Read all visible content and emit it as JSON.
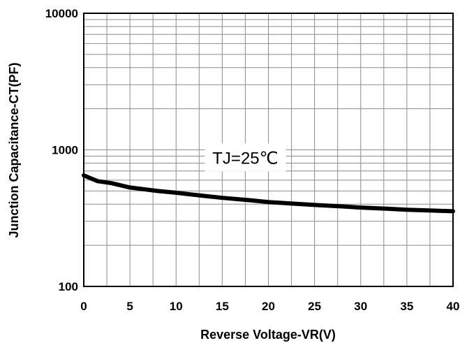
{
  "chart_data": {
    "type": "line",
    "xlabel": "Reverse Voltage-VR(V)",
    "ylabel": "Junction Capacitance-CT(PF)",
    "xlim": [
      0,
      40
    ],
    "ylim": [
      100,
      10000
    ],
    "yscale": "log",
    "grid": true,
    "x_ticks": [
      "0",
      "5",
      "10",
      "15",
      "20",
      "25",
      "30",
      "35",
      "40"
    ],
    "y_ticks": [
      "100",
      "1000",
      "10000"
    ],
    "annotations": [
      "TJ=25℃"
    ],
    "series": [
      {
        "x": [
          0,
          1.5,
          3,
          5,
          8,
          10,
          13,
          15,
          18,
          20,
          23,
          25,
          28,
          30,
          33,
          35,
          38,
          40
        ],
        "values": [
          650,
          590,
          570,
          530,
          500,
          485,
          460,
          445,
          428,
          415,
          403,
          395,
          385,
          378,
          370,
          364,
          359,
          355
        ]
      }
    ]
  }
}
